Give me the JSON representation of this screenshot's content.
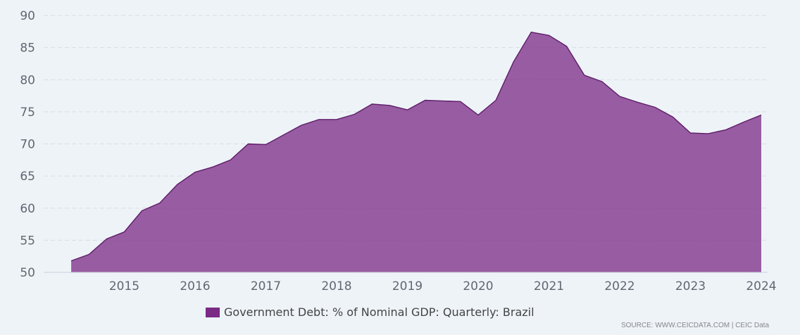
{
  "chart_data": {
    "type": "area",
    "series": [
      {
        "name": "Government Debt: % of Nominal GDP: Quarterly: Brazil",
        "color": "#7b2a86",
        "x": [
          "2014-03",
          "2014-06",
          "2014-09",
          "2014-12",
          "2015-03",
          "2015-06",
          "2015-09",
          "2015-12",
          "2016-03",
          "2016-06",
          "2016-09",
          "2016-12",
          "2017-03",
          "2017-06",
          "2017-09",
          "2017-12",
          "2018-03",
          "2018-06",
          "2018-09",
          "2018-12",
          "2019-03",
          "2019-06",
          "2019-09",
          "2019-12",
          "2020-03",
          "2020-06",
          "2020-09",
          "2020-12",
          "2021-03",
          "2021-06",
          "2021-09",
          "2021-12",
          "2022-03",
          "2022-06",
          "2022-09",
          "2022-12",
          "2023-03",
          "2023-06",
          "2023-09",
          "2023-12"
        ],
        "values": [
          51.8,
          52.8,
          55.2,
          56.3,
          59.6,
          60.8,
          63.7,
          65.6,
          66.4,
          67.5,
          70.0,
          69.9,
          71.4,
          72.9,
          73.8,
          73.8,
          74.6,
          76.2,
          76.0,
          75.3,
          76.8,
          76.7,
          76.6,
          74.5,
          76.8,
          82.8,
          87.4,
          86.9,
          85.2,
          80.7,
          79.7,
          77.4,
          76.5,
          75.7,
          74.2,
          71.7,
          71.6,
          72.2,
          73.4,
          74.5
        ]
      }
    ],
    "ylim": [
      50,
      90
    ],
    "yticks": [
      50,
      55,
      60,
      65,
      70,
      75,
      80,
      85,
      90
    ],
    "xticks": [
      "2015",
      "2016",
      "2017",
      "2018",
      "2019",
      "2020",
      "2021",
      "2022",
      "2023",
      "2024"
    ],
    "grid": true,
    "legend": "bottom-center"
  },
  "legend": {
    "label": "Government Debt: % of Nominal GDP: Quarterly: Brazil",
    "color": "#7b2a86"
  },
  "source": "SOURCE: WWW.CEICDATA.COM | CEIC Data"
}
